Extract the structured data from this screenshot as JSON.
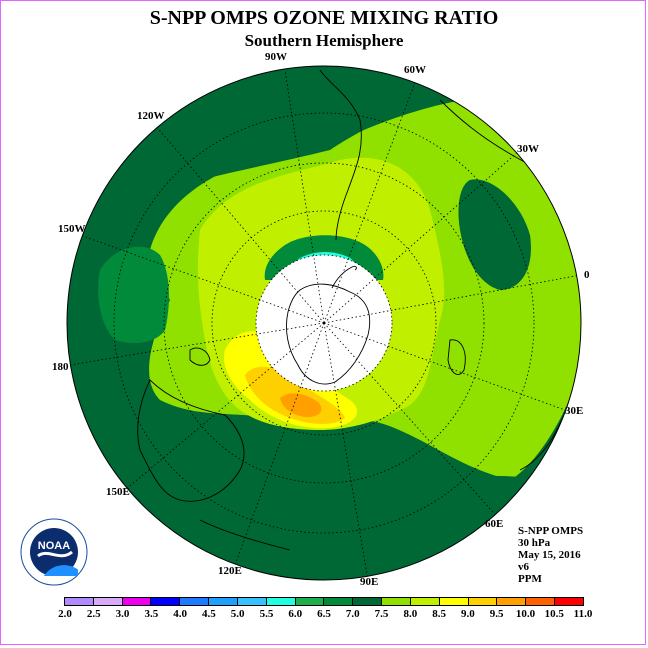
{
  "title": "S-NPP OMPS OZONE MIXING RATIO",
  "subtitle": "Southern Hemisphere",
  "longitude_labels": [
    "90W",
    "60W",
    "30W",
    "0",
    "30E",
    "60E",
    "90E",
    "120E",
    "150E",
    "180",
    "150W",
    "120W"
  ],
  "info": {
    "instrument": "S-NPP OMPS",
    "level": "30 hPa",
    "date": "May 15, 2016",
    "version": "v6",
    "units": "PPM"
  },
  "logo_text": "NOAA",
  "legend": {
    "ticks": [
      "2.0",
      "2.5",
      "3.0",
      "3.5",
      "4.0",
      "4.5",
      "5.0",
      "5.5",
      "6.0",
      "6.5",
      "7.0",
      "7.5",
      "8.0",
      "8.5",
      "9.0",
      "9.5",
      "10.0",
      "10.5",
      "11.0"
    ],
    "colors": [
      "#b28aff",
      "#d8aaf8",
      "#ee00ee",
      "#0000ff",
      "#1e7bff",
      "#1ea0ff",
      "#38c0ff",
      "#20ffe0",
      "#1db04a",
      "#008a3a",
      "#006834",
      "#90e000",
      "#c0f000",
      "#ffff00",
      "#ffd000",
      "#ffa000",
      "#ff6000",
      "#ff0000",
      "#8b4a2b"
    ]
  }
}
